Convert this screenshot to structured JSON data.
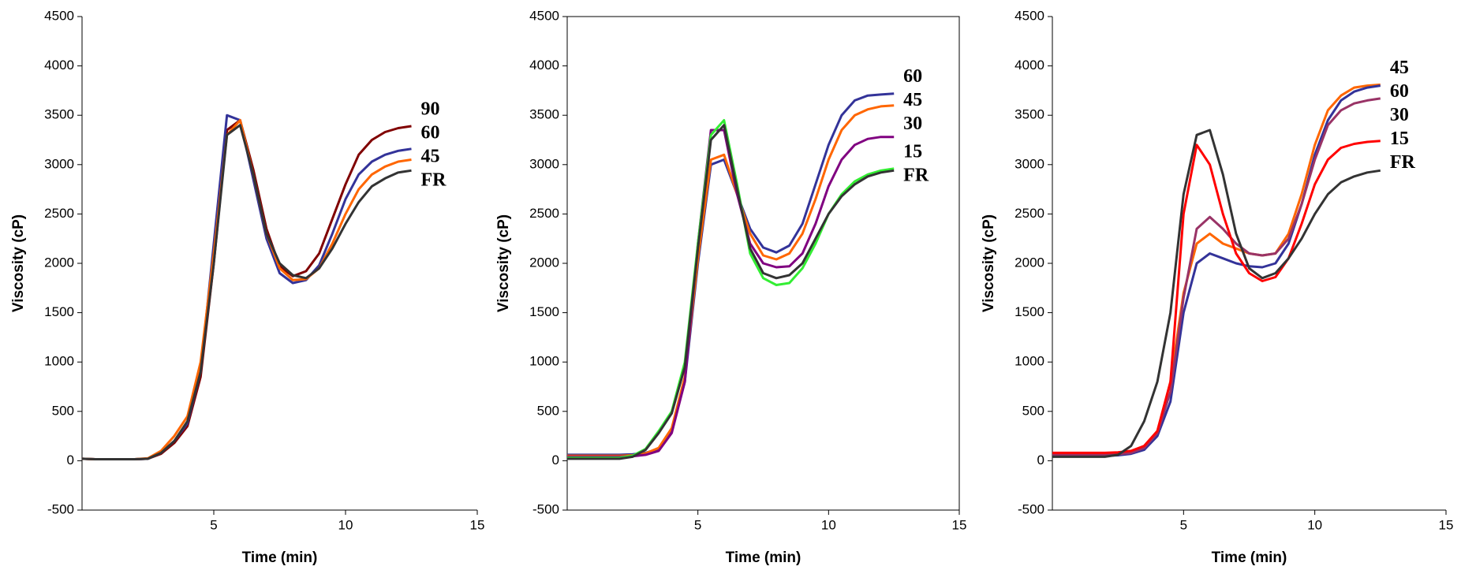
{
  "chart_data": [
    {
      "type": "line",
      "y_label": "Viscosity (cP)",
      "x_label": "Time (min)",
      "xlim": [
        0,
        15
      ],
      "xticks": [
        5,
        10,
        15
      ],
      "ylim": [
        -500,
        4500
      ],
      "yticks": [
        -500,
        0,
        500,
        1000,
        1500,
        2000,
        2500,
        3000,
        3500,
        4000,
        4500
      ],
      "frame": false,
      "x": [
        0,
        0.5,
        1,
        1.5,
        2,
        2.5,
        3,
        3.5,
        4,
        4.5,
        5,
        5.5,
        6,
        6.5,
        7,
        7.5,
        8,
        8.5,
        9,
        9.5,
        10,
        10.5,
        11,
        11.5,
        12,
        12.5
      ],
      "series": [
        {
          "name": "90",
          "color": "#800000",
          "values": [
            20,
            15,
            15,
            15,
            15,
            20,
            70,
            180,
            350,
            850,
            2000,
            3350,
            3450,
            2950,
            2350,
            1970,
            1870,
            1920,
            2100,
            2450,
            2800,
            3100,
            3250,
            3330,
            3370,
            3390
          ]
        },
        {
          "name": "60",
          "color": "#333399",
          "values": [
            20,
            15,
            15,
            15,
            15,
            20,
            80,
            200,
            380,
            900,
            2200,
            3500,
            3450,
            2850,
            2250,
            1900,
            1800,
            1830,
            1980,
            2300,
            2650,
            2900,
            3030,
            3100,
            3140,
            3160
          ]
        },
        {
          "name": "45",
          "color": "#ff6600",
          "values": [
            20,
            15,
            15,
            15,
            15,
            25,
            100,
            250,
            450,
            1000,
            2100,
            3300,
            3450,
            2900,
            2300,
            1950,
            1830,
            1840,
            1950,
            2200,
            2500,
            2750,
            2900,
            2980,
            3030,
            3050
          ]
        },
        {
          "name": "FR",
          "color": "#333333",
          "values": [
            20,
            15,
            15,
            15,
            15,
            20,
            80,
            200,
            400,
            900,
            2000,
            3300,
            3400,
            2900,
            2300,
            2000,
            1880,
            1850,
            1950,
            2150,
            2400,
            2620,
            2780,
            2860,
            2920,
            2940
          ]
        }
      ]
    },
    {
      "type": "line",
      "y_label": "Viscosity (cP)",
      "x_label": "Time (min)",
      "xlim": [
        0,
        15
      ],
      "xticks": [
        5,
        10,
        15
      ],
      "ylim": [
        -500,
        4500
      ],
      "yticks": [
        -500,
        0,
        500,
        1000,
        1500,
        2000,
        2500,
        3000,
        3500,
        4000,
        4500
      ],
      "frame": true,
      "x": [
        0,
        0.5,
        1,
        1.5,
        2,
        2.5,
        3,
        3.5,
        4,
        4.5,
        5,
        5.5,
        6,
        6.5,
        7,
        7.5,
        8,
        8.5,
        9,
        9.5,
        10,
        10.5,
        11,
        11.5,
        12,
        12.5
      ],
      "series": [
        {
          "name": "60",
          "color": "#333399",
          "values": [
            60,
            60,
            60,
            60,
            60,
            65,
            80,
            120,
            300,
            800,
            2000,
            3000,
            3050,
            2700,
            2350,
            2160,
            2110,
            2180,
            2400,
            2800,
            3200,
            3500,
            3650,
            3700,
            3710,
            3720
          ]
        },
        {
          "name": "45",
          "color": "#ff6600",
          "values": [
            50,
            50,
            50,
            50,
            50,
            55,
            75,
            130,
            330,
            850,
            2050,
            3050,
            3100,
            2700,
            2300,
            2080,
            2040,
            2100,
            2300,
            2650,
            3050,
            3350,
            3500,
            3560,
            3590,
            3600
          ]
        },
        {
          "name": "30",
          "color": "#800080",
          "values": [
            40,
            40,
            40,
            40,
            40,
            45,
            60,
            100,
            280,
            800,
            2200,
            3350,
            3350,
            2700,
            2200,
            2000,
            1960,
            1970,
            2100,
            2400,
            2780,
            3050,
            3200,
            3260,
            3280,
            3280
          ]
        },
        {
          "name": "15",
          "color": "#33ee33",
          "values": [
            30,
            30,
            30,
            30,
            30,
            50,
            120,
            300,
            500,
            1000,
            2200,
            3300,
            3450,
            2800,
            2100,
            1850,
            1780,
            1800,
            1950,
            2200,
            2500,
            2700,
            2830,
            2900,
            2940,
            2960
          ]
        },
        {
          "name": "FR",
          "color": "#333333",
          "values": [
            20,
            20,
            20,
            20,
            20,
            40,
            110,
            280,
            480,
            950,
            2150,
            3250,
            3400,
            2750,
            2150,
            1900,
            1850,
            1880,
            2000,
            2250,
            2500,
            2680,
            2800,
            2880,
            2920,
            2940
          ]
        }
      ]
    },
    {
      "type": "line",
      "y_label": "Viscosity (cP)",
      "x_label": "Time (min)",
      "xlim": [
        0,
        15
      ],
      "xticks": [
        5,
        10,
        15
      ],
      "ylim": [
        -500,
        4500
      ],
      "yticks": [
        -500,
        0,
        500,
        1000,
        1500,
        2000,
        2500,
        3000,
        3500,
        4000,
        4500
      ],
      "frame": false,
      "x": [
        0,
        0.5,
        1,
        1.5,
        2,
        2.5,
        3,
        3.5,
        4,
        4.5,
        5,
        5.5,
        6,
        6.5,
        7,
        7.5,
        8,
        8.5,
        9,
        9.5,
        10,
        10.5,
        11,
        11.5,
        12,
        12.5
      ],
      "series": [
        {
          "name": "45",
          "color": "#ff6600",
          "values": [
            70,
            70,
            70,
            70,
            70,
            75,
            90,
            150,
            300,
            800,
            1700,
            2200,
            2300,
            2200,
            2150,
            2100,
            2080,
            2100,
            2300,
            2700,
            3200,
            3550,
            3700,
            3780,
            3800,
            3810
          ]
        },
        {
          "name": "60",
          "color": "#333399",
          "values": [
            50,
            50,
            50,
            50,
            50,
            55,
            70,
            110,
            250,
            600,
            1500,
            2000,
            2100,
            2050,
            2000,
            1970,
            1960,
            2000,
            2200,
            2600,
            3100,
            3450,
            3650,
            3740,
            3780,
            3800
          ]
        },
        {
          "name": "30",
          "color": "#993366",
          "values": [
            60,
            60,
            60,
            60,
            60,
            65,
            80,
            130,
            280,
            700,
            1650,
            2350,
            2470,
            2350,
            2200,
            2100,
            2080,
            2100,
            2250,
            2600,
            3050,
            3400,
            3550,
            3620,
            3650,
            3670
          ]
        },
        {
          "name": "15",
          "color": "#ff0000",
          "values": [
            80,
            80,
            80,
            80,
            80,
            85,
            100,
            150,
            300,
            800,
            2500,
            3200,
            3000,
            2500,
            2100,
            1900,
            1820,
            1860,
            2050,
            2400,
            2800,
            3050,
            3170,
            3210,
            3230,
            3240
          ]
        },
        {
          "name": "FR",
          "color": "#333333",
          "values": [
            40,
            40,
            40,
            40,
            40,
            60,
            150,
            400,
            800,
            1500,
            2700,
            3300,
            3350,
            2900,
            2300,
            1950,
            1850,
            1900,
            2050,
            2250,
            2500,
            2700,
            2820,
            2880,
            2920,
            2940
          ]
        }
      ]
    }
  ]
}
